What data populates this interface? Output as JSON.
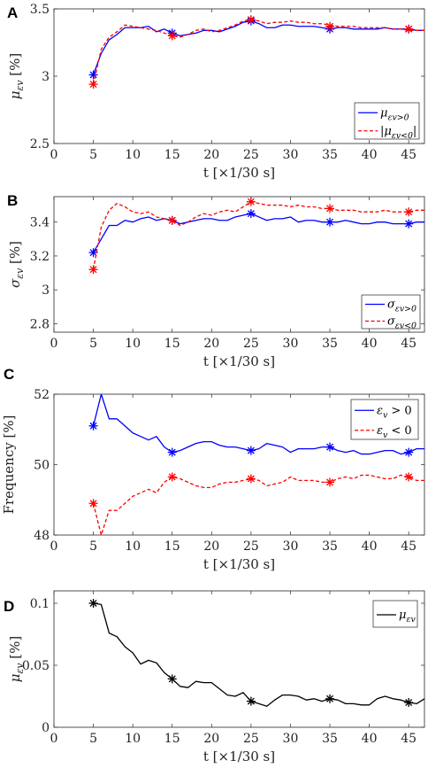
{
  "chart_data": [
    {
      "panel": "A",
      "type": "line",
      "xlabel": "t [×1/30 s]",
      "ylabel": "μεv [%]",
      "xlim": [
        0,
        47
      ],
      "ylim": [
        2.5,
        3.5
      ],
      "xticks": [
        0,
        5,
        10,
        15,
        20,
        25,
        30,
        35,
        40,
        45
      ],
      "yticks": [
        2.5,
        3,
        3.5
      ],
      "legend_position": "bottom-right",
      "grid": false,
      "series": [
        {
          "name": "μεv>0",
          "color": "#0000ff",
          "style": "solid",
          "x": [
            5,
            6,
            7,
            8,
            9,
            10,
            11,
            12,
            13,
            14,
            15,
            16,
            17,
            18,
            19,
            20,
            21,
            22,
            23,
            24,
            25,
            26,
            27,
            28,
            29,
            30,
            31,
            32,
            33,
            34,
            35,
            36,
            37,
            38,
            39,
            40,
            41,
            42,
            43,
            44,
            45,
            46,
            47
          ],
          "y": [
            3.01,
            3.17,
            3.27,
            3.31,
            3.36,
            3.36,
            3.36,
            3.37,
            3.33,
            3.35,
            3.32,
            3.3,
            3.31,
            3.32,
            3.34,
            3.34,
            3.33,
            3.35,
            3.37,
            3.4,
            3.41,
            3.39,
            3.36,
            3.36,
            3.38,
            3.38,
            3.37,
            3.37,
            3.37,
            3.36,
            3.35,
            3.36,
            3.36,
            3.35,
            3.35,
            3.35,
            3.35,
            3.36,
            3.35,
            3.35,
            3.35,
            3.34,
            3.34
          ],
          "markers_x": [
            5,
            15,
            25,
            35,
            45
          ],
          "markers_y": [
            3.01,
            3.32,
            3.41,
            3.35,
            3.35
          ]
        },
        {
          "name": "|μεv<0|",
          "color": "#ff0000",
          "style": "dashed",
          "x": [
            5,
            6,
            7,
            8,
            9,
            10,
            11,
            12,
            13,
            14,
            15,
            16,
            17,
            18,
            19,
            20,
            21,
            22,
            23,
            24,
            25,
            26,
            27,
            28,
            29,
            30,
            31,
            32,
            33,
            34,
            35,
            36,
            37,
            38,
            39,
            40,
            41,
            42,
            43,
            44,
            45,
            46,
            47
          ],
          "y": [
            2.94,
            3.2,
            3.29,
            3.33,
            3.38,
            3.37,
            3.36,
            3.35,
            3.34,
            3.32,
            3.3,
            3.29,
            3.31,
            3.34,
            3.35,
            3.33,
            3.34,
            3.36,
            3.38,
            3.41,
            3.42,
            3.41,
            3.39,
            3.4,
            3.4,
            3.41,
            3.4,
            3.4,
            3.39,
            3.39,
            3.38,
            3.37,
            3.37,
            3.37,
            3.36,
            3.36,
            3.36,
            3.36,
            3.35,
            3.35,
            3.34,
            3.34,
            3.34
          ],
          "markers_x": [
            5,
            15,
            25,
            35,
            45
          ],
          "markers_y": [
            2.94,
            3.3,
            3.42,
            3.37,
            3.35
          ]
        }
      ]
    },
    {
      "panel": "B",
      "type": "line",
      "xlabel": "t [×1/30 s]",
      "ylabel": "σεv [%]",
      "xlim": [
        0,
        47
      ],
      "ylim": [
        2.75,
        3.55
      ],
      "xticks": [
        0,
        5,
        10,
        15,
        20,
        25,
        30,
        35,
        40,
        45
      ],
      "yticks": [
        2.8,
        3,
        3.2,
        3.4
      ],
      "legend_position": "bottom-right",
      "grid": false,
      "series": [
        {
          "name": "σεv>0",
          "color": "#0000ff",
          "style": "solid",
          "x": [
            5,
            6,
            7,
            8,
            9,
            10,
            11,
            12,
            13,
            14,
            15,
            16,
            17,
            18,
            19,
            20,
            21,
            22,
            23,
            24,
            25,
            26,
            27,
            28,
            29,
            30,
            31,
            32,
            33,
            34,
            35,
            36,
            37,
            38,
            39,
            40,
            41,
            42,
            43,
            44,
            45,
            46,
            47
          ],
          "y": [
            3.22,
            3.3,
            3.38,
            3.38,
            3.41,
            3.4,
            3.42,
            3.43,
            3.41,
            3.42,
            3.41,
            3.39,
            3.4,
            3.41,
            3.42,
            3.42,
            3.41,
            3.41,
            3.43,
            3.44,
            3.45,
            3.43,
            3.41,
            3.42,
            3.42,
            3.43,
            3.4,
            3.41,
            3.41,
            3.4,
            3.4,
            3.4,
            3.41,
            3.4,
            3.39,
            3.39,
            3.4,
            3.4,
            3.39,
            3.39,
            3.39,
            3.4,
            3.4
          ],
          "markers_x": [
            5,
            15,
            25,
            35,
            45
          ],
          "markers_y": [
            3.22,
            3.41,
            3.45,
            3.4,
            3.39
          ]
        },
        {
          "name": "σεv<0",
          "color": "#ff0000",
          "style": "dashed",
          "x": [
            5,
            6,
            7,
            8,
            9,
            10,
            11,
            12,
            13,
            14,
            15,
            16,
            17,
            18,
            19,
            20,
            21,
            22,
            23,
            24,
            25,
            26,
            27,
            28,
            29,
            30,
            31,
            32,
            33,
            34,
            35,
            36,
            37,
            38,
            39,
            40,
            41,
            42,
            43,
            44,
            45,
            46,
            47
          ],
          "y": [
            3.12,
            3.37,
            3.47,
            3.51,
            3.49,
            3.46,
            3.45,
            3.46,
            3.43,
            3.42,
            3.41,
            3.38,
            3.4,
            3.43,
            3.45,
            3.44,
            3.46,
            3.47,
            3.46,
            3.49,
            3.52,
            3.51,
            3.5,
            3.5,
            3.5,
            3.49,
            3.5,
            3.49,
            3.49,
            3.48,
            3.48,
            3.47,
            3.47,
            3.47,
            3.46,
            3.46,
            3.46,
            3.47,
            3.46,
            3.46,
            3.46,
            3.47,
            3.47
          ],
          "markers_x": [
            5,
            15,
            25,
            35,
            45
          ],
          "markers_y": [
            3.12,
            3.41,
            3.52,
            3.48,
            3.46
          ]
        }
      ]
    },
    {
      "panel": "C",
      "type": "line",
      "xlabel": "t [×1/30 s]",
      "ylabel": "Frequency [%]",
      "xlim": [
        0,
        47
      ],
      "ylim": [
        48,
        52
      ],
      "xticks": [
        0,
        5,
        10,
        15,
        20,
        25,
        30,
        35,
        40,
        45
      ],
      "yticks": [
        48,
        50,
        52
      ],
      "legend_position": "top-right",
      "grid": false,
      "series": [
        {
          "name": "εv > 0",
          "color": "#0000ff",
          "style": "solid",
          "x": [
            5,
            6,
            7,
            8,
            9,
            10,
            11,
            12,
            13,
            14,
            15,
            16,
            17,
            18,
            19,
            20,
            21,
            22,
            23,
            24,
            25,
            26,
            27,
            28,
            29,
            30,
            31,
            32,
            33,
            34,
            35,
            36,
            37,
            38,
            39,
            40,
            41,
            42,
            43,
            44,
            45,
            46,
            47
          ],
          "y": [
            51.1,
            52.0,
            51.3,
            51.3,
            51.1,
            50.9,
            50.8,
            50.7,
            50.8,
            50.5,
            50.35,
            50.4,
            50.5,
            50.6,
            50.65,
            50.65,
            50.55,
            50.5,
            50.5,
            50.45,
            50.4,
            50.45,
            50.6,
            50.55,
            50.5,
            50.35,
            50.45,
            50.45,
            50.45,
            50.5,
            50.5,
            50.4,
            50.35,
            50.4,
            50.3,
            50.3,
            50.35,
            50.4,
            50.4,
            50.3,
            50.35,
            50.45,
            50.45
          ],
          "markers_x": [
            5,
            15,
            25,
            35,
            45
          ],
          "markers_y": [
            51.1,
            50.35,
            50.4,
            50.5,
            50.35
          ]
        },
        {
          "name": "εv < 0",
          "color": "#ff0000",
          "style": "dashed",
          "x": [
            5,
            6,
            7,
            8,
            9,
            10,
            11,
            12,
            13,
            14,
            15,
            16,
            17,
            18,
            19,
            20,
            21,
            22,
            23,
            24,
            25,
            26,
            27,
            28,
            29,
            30,
            31,
            32,
            33,
            34,
            35,
            36,
            37,
            38,
            39,
            40,
            41,
            42,
            43,
            44,
            45,
            46,
            47
          ],
          "y": [
            48.9,
            48.0,
            48.7,
            48.7,
            48.9,
            49.1,
            49.2,
            49.3,
            49.2,
            49.5,
            49.65,
            49.6,
            49.5,
            49.4,
            49.35,
            49.35,
            49.45,
            49.5,
            49.5,
            49.55,
            49.6,
            49.55,
            49.4,
            49.45,
            49.5,
            49.65,
            49.55,
            49.55,
            49.55,
            49.5,
            49.5,
            49.6,
            49.65,
            49.6,
            49.7,
            49.7,
            49.65,
            49.6,
            49.6,
            49.7,
            49.65,
            49.55,
            49.55
          ],
          "markers_x": [
            5,
            15,
            25,
            35,
            45
          ],
          "markers_y": [
            48.9,
            49.65,
            49.6,
            49.5,
            49.65
          ]
        }
      ]
    },
    {
      "panel": "D",
      "type": "line",
      "xlabel": "t [×1/30 s]",
      "ylabel": "μεv [%]",
      "xlim": [
        0,
        47
      ],
      "ylim": [
        0,
        0.11
      ],
      "xticks": [
        0,
        5,
        10,
        15,
        20,
        25,
        30,
        35,
        40,
        45
      ],
      "yticks": [
        0,
        0.05,
        0.1
      ],
      "legend_position": "top-right",
      "grid": false,
      "series": [
        {
          "name": "μεv",
          "color": "#000000",
          "style": "solid",
          "x": [
            5,
            6,
            7,
            8,
            9,
            10,
            11,
            12,
            13,
            14,
            15,
            16,
            17,
            18,
            19,
            20,
            21,
            22,
            23,
            24,
            25,
            26,
            27,
            28,
            29,
            30,
            31,
            32,
            33,
            34,
            35,
            36,
            37,
            38,
            39,
            40,
            41,
            42,
            43,
            44,
            45,
            46,
            47
          ],
          "y": [
            0.1,
            0.099,
            0.076,
            0.073,
            0.065,
            0.06,
            0.051,
            0.054,
            0.052,
            0.044,
            0.039,
            0.033,
            0.032,
            0.037,
            0.036,
            0.036,
            0.031,
            0.026,
            0.025,
            0.028,
            0.021,
            0.019,
            0.017,
            0.022,
            0.026,
            0.026,
            0.025,
            0.022,
            0.023,
            0.021,
            0.023,
            0.022,
            0.019,
            0.019,
            0.018,
            0.018,
            0.023,
            0.025,
            0.023,
            0.022,
            0.02,
            0.019,
            0.023
          ],
          "markers_x": [
            5,
            15,
            25,
            35,
            45
          ],
          "markers_y": [
            0.1,
            0.039,
            0.021,
            0.023,
            0.02
          ]
        }
      ]
    }
  ]
}
